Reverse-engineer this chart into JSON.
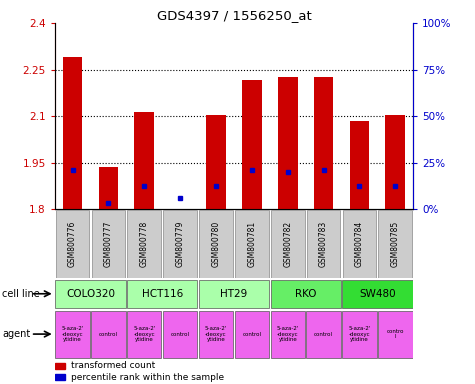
{
  "title": "GDS4397 / 1556250_at",
  "samples": [
    "GSM800776",
    "GSM800777",
    "GSM800778",
    "GSM800779",
    "GSM800780",
    "GSM800781",
    "GSM800782",
    "GSM800783",
    "GSM800784",
    "GSM800785"
  ],
  "red_values": [
    2.29,
    1.935,
    2.115,
    1.8,
    2.105,
    2.215,
    2.225,
    2.225,
    2.085,
    2.105
  ],
  "blue_values": [
    1.925,
    1.82,
    1.875,
    1.835,
    1.875,
    1.925,
    1.92,
    1.925,
    1.875,
    1.875
  ],
  "ymin": 1.8,
  "ymax": 2.4,
  "y_ticks_left": [
    1.8,
    1.95,
    2.1,
    2.25,
    2.4
  ],
  "y_ticks_right_pct": [
    0,
    25,
    50,
    75,
    100
  ],
  "cell_lines": [
    {
      "name": "COLO320",
      "start": 0,
      "end": 2,
      "color": "#aaffaa"
    },
    {
      "name": "HCT116",
      "start": 2,
      "end": 4,
      "color": "#aaffaa"
    },
    {
      "name": "HT29",
      "start": 4,
      "end": 6,
      "color": "#aaffaa"
    },
    {
      "name": "RKO",
      "start": 6,
      "end": 8,
      "color": "#66ee66"
    },
    {
      "name": "SW480",
      "start": 8,
      "end": 10,
      "color": "#33dd33"
    }
  ],
  "agents": [
    {
      "name": "5-aza-2'\n-deoxyc\nytidine",
      "col": 0,
      "color": "#ee66ee"
    },
    {
      "name": "control",
      "col": 1,
      "color": "#ee66ee"
    },
    {
      "name": "5-aza-2'\n-deoxyc\nytidine",
      "col": 2,
      "color": "#ee66ee"
    },
    {
      "name": "control",
      "col": 3,
      "color": "#ee66ee"
    },
    {
      "name": "5-aza-2'\n-deoxyc\nytidine",
      "col": 4,
      "color": "#ee66ee"
    },
    {
      "name": "control",
      "col": 5,
      "color": "#ee66ee"
    },
    {
      "name": "5-aza-2'\n-deoxyc\nytidine",
      "col": 6,
      "color": "#ee66ee"
    },
    {
      "name": "control",
      "col": 7,
      "color": "#ee66ee"
    },
    {
      "name": "5-aza-2'\n-deoxyc\nytidine",
      "col": 8,
      "color": "#ee66ee"
    },
    {
      "name": "contro\nl",
      "col": 9,
      "color": "#ee66ee"
    }
  ],
  "bar_color": "#cc0000",
  "dot_color": "#0000cc",
  "background_color": "#ffffff",
  "tick_color_left": "#cc0000",
  "tick_color_right": "#0000cc",
  "sample_bg": "#cccccc"
}
